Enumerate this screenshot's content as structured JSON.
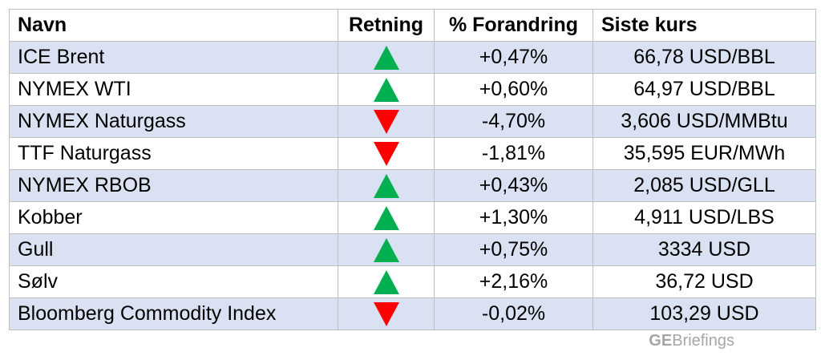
{
  "headers": {
    "name": "Navn",
    "direction": "Retning",
    "change": "% Forandring",
    "last": "Siste kurs"
  },
  "colors": {
    "up": "#00b050",
    "down": "#ff0000",
    "row_shade": "#d9e1f2"
  },
  "rows": [
    {
      "name": "ICE Brent",
      "direction": "up",
      "change": "+0,47%",
      "last": "66,78 USD/BBL"
    },
    {
      "name": "NYMEX WTI",
      "direction": "up",
      "change": "+0,60%",
      "last": "64,97 USD/BBL"
    },
    {
      "name": "NYMEX Naturgass",
      "direction": "down",
      "change": "-4,70%",
      "last": "3,606 USD/MMBtu"
    },
    {
      "name": "TTF Naturgass",
      "direction": "down",
      "change": "-1,81%",
      "last": "35,595 EUR/MWh"
    },
    {
      "name": "NYMEX RBOB",
      "direction": "up",
      "change": "+0,43%",
      "last": "2,085 USD/GLL"
    },
    {
      "name": "Kobber",
      "direction": "up",
      "change": "+1,30%",
      "last": "4,911 USD/LBS"
    },
    {
      "name": "Gull",
      "direction": "up",
      "change": "+0,75%",
      "last": "3334 USD"
    },
    {
      "name": "Sølv",
      "direction": "up",
      "change": "+2,16%",
      "last": "36,72 USD"
    },
    {
      "name": "Bloomberg Commodity Index",
      "direction": "down",
      "change": "-0,02%",
      "last": "103,29 USD"
    }
  ],
  "brand": {
    "prefix": "GE",
    "suffix": "Briefings"
  }
}
